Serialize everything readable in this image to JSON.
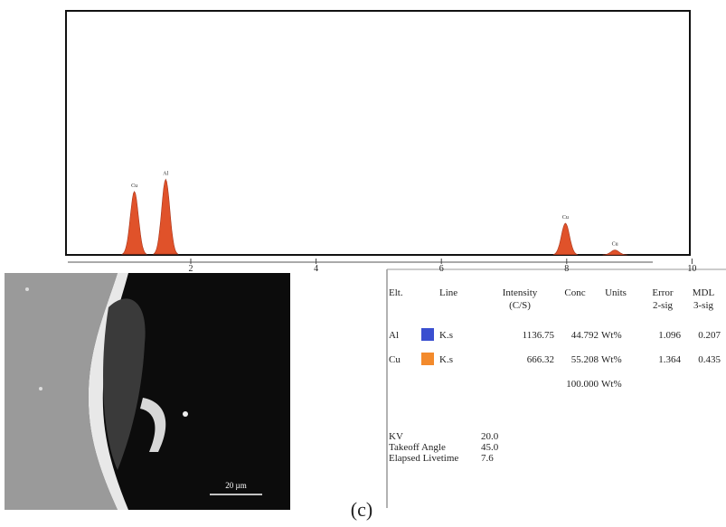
{
  "chart_data": {
    "type": "peaks",
    "x": [
      1.1,
      1.6,
      7.98,
      8.77
    ],
    "values": [
      26,
      31,
      13,
      2
    ],
    "labels": [
      "Cu",
      "Al",
      "Cu",
      "Cu"
    ],
    "color": "#e0522a",
    "xlim": [
      0,
      10
    ],
    "xticks": [
      2,
      4,
      6,
      8,
      10
    ],
    "ylim": [
      0,
      100
    ]
  },
  "image": {
    "scale_bar": "20 µm"
  },
  "table": {
    "header": [
      "Elt.",
      "Line",
      "Intensity\n(C/S)",
      "Conc",
      "Units",
      "Error\n2-sig",
      "MDL\n3-sig"
    ],
    "rows": [
      [
        "Al",
        "K.s",
        "1136.75",
        "44.792",
        "Wt%",
        "1.096",
        "0.207"
      ],
      [
        "Cu",
        "K.s",
        "666.32",
        "55.208",
        "Wt%",
        "1.364",
        "0.435"
      ]
    ],
    "swatches": [
      "#3a4fd0",
      "#f38a2c"
    ],
    "total": [
      "100.000",
      "Wt%"
    ],
    "info": [
      [
        "KV",
        "20.0"
      ],
      [
        "Takeoff  Angle",
        "45.0"
      ],
      [
        "Elapsed Livetime",
        "7.6"
      ]
    ]
  },
  "caption": "(c)"
}
